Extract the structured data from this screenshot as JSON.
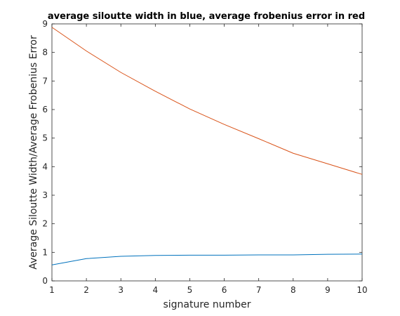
{
  "chart_data": {
    "type": "line",
    "title": "average siloutte width in blue, average frobenius error in red",
    "xlabel": "signature number",
    "ylabel": "Average Siloutte Width/Average Frobenius Error",
    "xlim": [
      1,
      10
    ],
    "ylim": [
      0,
      9
    ],
    "xticks": [
      "1",
      "2",
      "3",
      "4",
      "5",
      "6",
      "7",
      "8",
      "9",
      "10"
    ],
    "yticks": [
      "0",
      "1",
      "2",
      "3",
      "4",
      "5",
      "6",
      "7",
      "8",
      "9"
    ],
    "grid": false,
    "legend": "none",
    "x": [
      1,
      2,
      3,
      4,
      5,
      6,
      7,
      8,
      9,
      10
    ],
    "series": [
      {
        "values": [
          0.56,
          0.78,
          0.86,
          0.89,
          0.9,
          0.9,
          0.91,
          0.91,
          0.93,
          0.94
        ],
        "color": "#0072BD"
      },
      {
        "values": [
          8.88,
          8.05,
          7.3,
          6.64,
          6.02,
          5.48,
          4.98,
          4.47,
          4.1,
          3.73
        ],
        "color": "#D95319"
      }
    ]
  }
}
